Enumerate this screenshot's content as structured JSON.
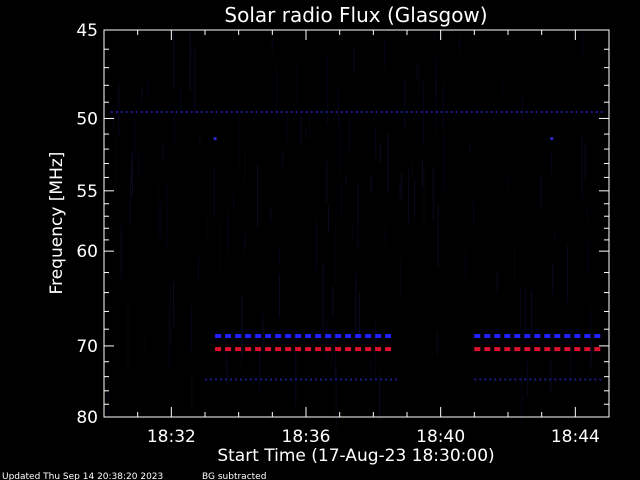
{
  "chart_data": {
    "type": "heatmap",
    "title": "Solar radio Flux (Glasgow)",
    "xlabel": "Start Time (17-Aug-23 18:30:00)",
    "ylabel": "Frequency [MHz]",
    "x_ticks": [
      "18:32",
      "18:36",
      "18:40",
      "18:44"
    ],
    "x_tick_minutes": [
      2,
      6,
      10,
      14
    ],
    "xlim_minutes": [
      0,
      15
    ],
    "y_ticks": [
      45,
      50,
      55,
      60,
      70,
      80
    ],
    "ylim": [
      45,
      80
    ],
    "y_scale": "reciprocal",
    "background": "#000000",
    "grid": false,
    "legend": "none",
    "bands": [
      {
        "frequency": 49.6,
        "start": 0.2,
        "end": 14.9,
        "intensity": "weak",
        "color": "#1a1a9a"
      },
      {
        "frequency": 68.8,
        "start": 3.3,
        "end": 8.8,
        "intensity": "strong",
        "color": "#2020ff"
      },
      {
        "frequency": 68.8,
        "start": 11.0,
        "end": 14.9,
        "intensity": "strong",
        "color": "#2020ff"
      },
      {
        "frequency": 70.4,
        "start": 3.3,
        "end": 8.8,
        "intensity": "strongest",
        "color": "#e01030"
      },
      {
        "frequency": 70.4,
        "start": 11.0,
        "end": 14.9,
        "intensity": "strongest",
        "color": "#e01030"
      },
      {
        "frequency": 74.4,
        "start": 3.0,
        "end": 8.8,
        "intensity": "weak",
        "color": "#1a1a8a"
      },
      {
        "frequency": 74.4,
        "start": 11.0,
        "end": 14.9,
        "intensity": "weak",
        "color": "#1a1a8a"
      }
    ],
    "points": [
      {
        "time": 3.3,
        "frequency": 51.3,
        "color": "#2a2acc"
      },
      {
        "time": 13.3,
        "frequency": 51.3,
        "color": "#2a2acc"
      }
    ]
  },
  "footer": {
    "updated": "Updated Thu Sep 14 20:38:20 2023",
    "note": "BG subtracted"
  },
  "colors": {
    "axis": "#ffffff",
    "noise": "#0b0b28",
    "text": "#ffffff"
  }
}
